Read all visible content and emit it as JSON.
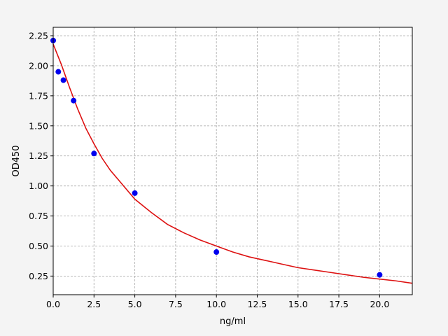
{
  "chart_data": {
    "type": "scatter",
    "xlabel": "ng/ml",
    "ylabel": "OD450",
    "xlim": [
      0,
      22
    ],
    "ylim": [
      0.095,
      2.32
    ],
    "xticks": [
      "0.0",
      "2.5",
      "5.0",
      "7.5",
      "10.0",
      "12.5",
      "15.0",
      "17.5",
      "20.0"
    ],
    "yticks": [
      "0.25",
      "0.50",
      "0.75",
      "1.00",
      "1.25",
      "1.50",
      "1.75",
      "2.00",
      "2.25"
    ],
    "grid": true,
    "points": {
      "x": [
        0,
        0.313,
        0.625,
        1.25,
        2.5,
        5,
        10,
        20
      ],
      "y": [
        2.21,
        1.95,
        1.88,
        1.71,
        1.27,
        0.94,
        0.45,
        0.26
      ]
    },
    "fit_curve": {
      "x": [
        0,
        0.5,
        1,
        1.5,
        2,
        2.5,
        3,
        3.5,
        4,
        5,
        6,
        7,
        8,
        9,
        10,
        11,
        12,
        13,
        14,
        15,
        16,
        17,
        18,
        19,
        20,
        21,
        22
      ],
      "y": [
        2.18,
        2.01,
        1.82,
        1.64,
        1.48,
        1.35,
        1.23,
        1.13,
        1.05,
        0.89,
        0.78,
        0.68,
        0.61,
        0.55,
        0.5,
        0.45,
        0.41,
        0.38,
        0.35,
        0.32,
        0.3,
        0.28,
        0.26,
        0.24,
        0.225,
        0.21,
        0.19
      ]
    },
    "colors": {
      "points": "#0000ee",
      "curve": "#dd1111",
      "grid": "#b0b0b0",
      "background": "#ffffff"
    }
  }
}
